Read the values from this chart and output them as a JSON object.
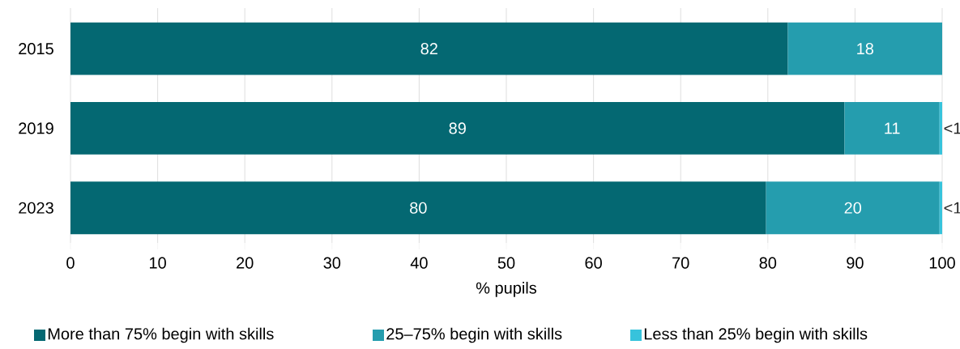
{
  "chart_data": {
    "type": "bar",
    "orientation": "horizontal",
    "stacked": true,
    "categories": [
      "2015",
      "2019",
      "2023"
    ],
    "xlabel": "% pupils",
    "xlim": [
      0,
      100
    ],
    "xticks": [
      0,
      10,
      20,
      30,
      40,
      50,
      60,
      70,
      80,
      90,
      100
    ],
    "grid": "x",
    "legend": "bottom",
    "series": [
      {
        "name": "More than 75% begin with skills",
        "color": "#046872",
        "values": [
          82.3,
          88.8,
          79.8
        ],
        "value_labels": [
          "82",
          "89",
          "80"
        ]
      },
      {
        "name": "25–75% begin with skills",
        "color": "#259dae",
        "values": [
          17.7,
          10.9,
          19.9
        ],
        "value_labels": [
          "18",
          "11",
          "20"
        ]
      },
      {
        "name": "Less than 25% begin with skills",
        "color": "#37c3dc",
        "values": [
          null,
          0.3,
          0.3
        ],
        "value_labels": [
          null,
          "<1",
          "<1"
        ]
      }
    ]
  }
}
